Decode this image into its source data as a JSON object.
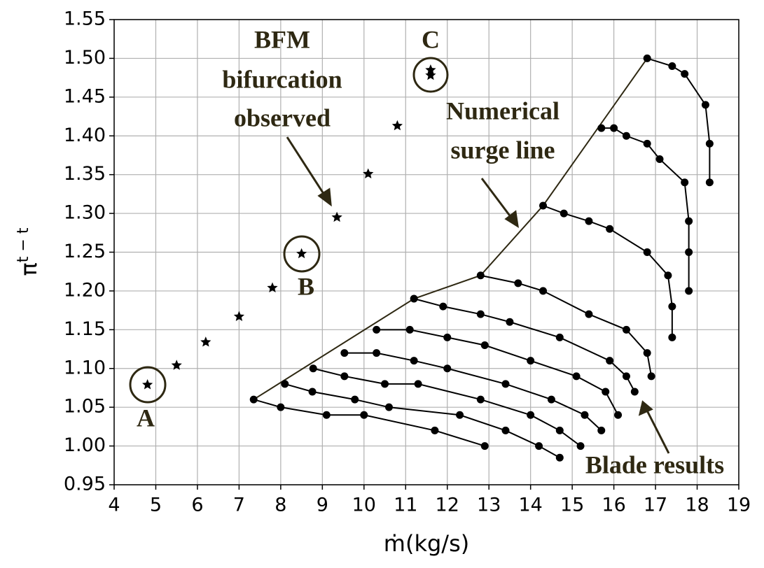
{
  "chart_data": {
    "type": "line",
    "xlabel": "ṁ(kg/s)",
    "ylabel_symbol": "π",
    "ylabel_superscript": "t − t",
    "xlim": [
      4,
      19
    ],
    "xticks": [
      4,
      5,
      6,
      7,
      8,
      9,
      10,
      11,
      12,
      13,
      14,
      15,
      16,
      17,
      18,
      19
    ],
    "ylim": [
      0.95,
      1.55
    ],
    "yticks": [
      0.95,
      {
        "value": 1.0,
        "label": "1.00"
      },
      1.05,
      {
        "value": 1.1,
        "label": "1.10"
      },
      1.15,
      {
        "value": 1.2,
        "label": "1.20"
      },
      1.25,
      {
        "value": 1.3,
        "label": "1.30"
      },
      1.35,
      {
        "value": 1.4,
        "label": "1.40"
      },
      1.45,
      {
        "value": 1.5,
        "label": "1.50"
      },
      1.55
    ],
    "grid": true,
    "annotations": [
      "BFM",
      "bifurcation",
      "observed",
      "C",
      "Numerical",
      "surge line",
      "B",
      "A",
      "Blade results"
    ],
    "series": [
      {
        "marker": "star",
        "line": false,
        "color": "#000000",
        "x": [
          4.8,
          5.5,
          6.2,
          7.0,
          7.8,
          8.5,
          9.35,
          10.1,
          10.8,
          11.6,
          11.6
        ],
        "values": [
          1.079,
          1.104,
          1.134,
          1.167,
          1.204,
          1.248,
          1.295,
          1.351,
          1.413,
          1.485,
          1.478
        ]
      },
      {
        "marker": "none",
        "line": true,
        "color": "#2e2812",
        "x": [
          7.35,
          11.2,
          12.8,
          14.3,
          16.8
        ],
        "values": [
          1.06,
          1.19,
          1.22,
          1.31,
          1.5
        ]
      },
      {
        "marker": "circle",
        "line": true,
        "color": "#000000",
        "x": [
          7.35,
          8.0,
          9.1,
          10.0,
          11.7,
          12.9
        ],
        "values": [
          1.06,
          1.05,
          1.04,
          1.04,
          1.02,
          1.0
        ]
      },
      {
        "marker": "circle",
        "line": true,
        "color": "#000000",
        "x": [
          8.1,
          8.76,
          9.78,
          10.6,
          12.3,
          13.4,
          14.2,
          14.7
        ],
        "values": [
          1.08,
          1.07,
          1.06,
          1.05,
          1.04,
          1.02,
          1.0,
          0.985
        ]
      },
      {
        "marker": "circle",
        "line": true,
        "color": "#000000",
        "x": [
          8.78,
          9.53,
          10.5,
          11.3,
          12.8,
          14.0,
          14.7,
          15.2
        ],
        "values": [
          1.1,
          1.09,
          1.08,
          1.08,
          1.06,
          1.04,
          1.02,
          1.0
        ]
      },
      {
        "marker": "circle",
        "line": true,
        "color": "#000000",
        "x": [
          9.53,
          10.3,
          11.2,
          12.0,
          13.4,
          14.5,
          15.3,
          15.7
        ],
        "values": [
          1.12,
          1.12,
          1.11,
          1.1,
          1.08,
          1.06,
          1.04,
          1.02
        ]
      },
      {
        "marker": "circle",
        "line": true,
        "color": "#000000",
        "x": [
          10.3,
          11.1,
          12.0,
          12.9,
          14.0,
          15.1,
          15.8,
          16.1
        ],
        "values": [
          1.15,
          1.15,
          1.14,
          1.13,
          1.11,
          1.09,
          1.07,
          1.04
        ]
      },
      {
        "marker": "circle",
        "line": true,
        "color": "#000000",
        "x": [
          11.2,
          11.9,
          12.8,
          13.5,
          14.7,
          15.9,
          16.3,
          16.5
        ],
        "values": [
          1.19,
          1.18,
          1.17,
          1.16,
          1.14,
          1.11,
          1.09,
          1.07
        ]
      },
      {
        "marker": "circle",
        "line": true,
        "color": "#000000",
        "x": [
          12.8,
          13.7,
          14.3,
          15.4,
          16.3,
          16.8,
          16.9
        ],
        "values": [
          1.22,
          1.21,
          1.2,
          1.17,
          1.15,
          1.12,
          1.09
        ]
      },
      {
        "marker": "circle",
        "line": true,
        "color": "#000000",
        "x": [
          14.3,
          14.8,
          15.4,
          15.9,
          16.8,
          17.3,
          17.4,
          17.4
        ],
        "values": [
          1.31,
          1.3,
          1.29,
          1.28,
          1.25,
          1.22,
          1.18,
          1.14
        ]
      },
      {
        "marker": "circle",
        "line": true,
        "color": "#000000",
        "x": [
          15.7,
          16.0,
          16.3,
          16.8,
          17.1,
          17.7,
          17.8,
          17.8,
          17.8
        ],
        "values": [
          1.41,
          1.41,
          1.4,
          1.39,
          1.37,
          1.34,
          1.29,
          1.25,
          1.2
        ]
      },
      {
        "marker": "circle",
        "line": true,
        "color": "#000000",
        "x": [
          16.8,
          17.4,
          17.7,
          18.2,
          18.3,
          18.3
        ],
        "values": [
          1.5,
          1.49,
          1.48,
          1.44,
          1.39,
          1.34
        ]
      }
    ]
  }
}
